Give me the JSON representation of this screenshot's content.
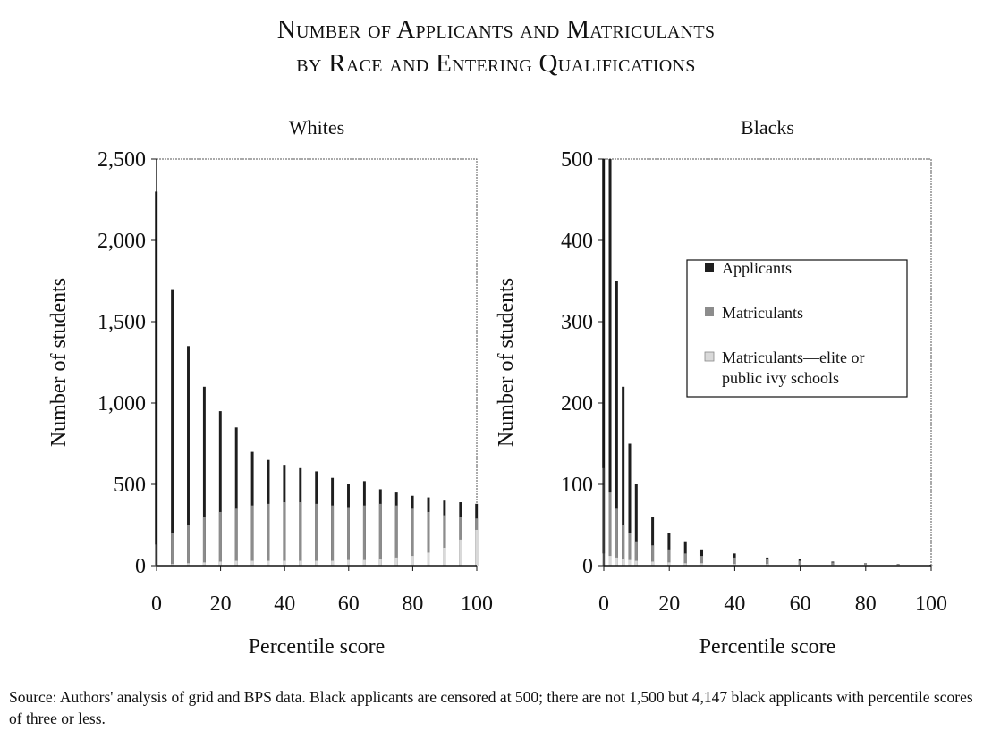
{
  "title": {
    "line1": "Number of Applicants and Matriculants",
    "line2": "by Race and Entering Qualifications"
  },
  "source": "Source: Authors' analysis of grid and BPS data. Black applicants are censored at 500; there are not 1,500 but 4,147 black applicants with percentile scores of three or less.",
  "colors": {
    "applicants": "#1e1e1e",
    "matriculants": "#8c8c8c",
    "elite": "#d9d9d9",
    "frame": "#555555"
  },
  "chart_data": [
    {
      "type": "bar",
      "title": "Whites",
      "xlabel": "Percentile score",
      "ylabel": "Number of students",
      "xlim": [
        0,
        100
      ],
      "ylim": [
        0,
        2500
      ],
      "xticks": [
        "0",
        "20",
        "40",
        "60",
        "80",
        "100"
      ],
      "yticks": [
        "0",
        "500",
        "1,000",
        "1,500",
        "2,000",
        "2,500"
      ],
      "series": [
        {
          "name": "Applicants",
          "x": [
            0,
            5,
            10,
            15,
            20,
            25,
            30,
            35,
            40,
            45,
            50,
            55,
            60,
            65,
            70,
            75,
            80,
            85,
            90,
            95,
            100
          ],
          "values": [
            2300,
            1700,
            1350,
            1100,
            950,
            850,
            700,
            650,
            620,
            600,
            580,
            540,
            500,
            520,
            470,
            450,
            430,
            420,
            400,
            390,
            380
          ]
        },
        {
          "name": "Matriculants",
          "x": [
            0,
            5,
            10,
            15,
            20,
            25,
            30,
            35,
            40,
            45,
            50,
            55,
            60,
            65,
            70,
            75,
            80,
            85,
            90,
            95,
            100
          ],
          "values": [
            130,
            200,
            250,
            300,
            330,
            350,
            370,
            380,
            390,
            390,
            380,
            370,
            360,
            370,
            380,
            370,
            350,
            330,
            310,
            300,
            290
          ]
        },
        {
          "name": "Matriculants—elite or public ivy schools",
          "x": [
            0,
            5,
            10,
            15,
            20,
            25,
            30,
            35,
            40,
            45,
            50,
            55,
            60,
            65,
            70,
            75,
            80,
            85,
            90,
            95,
            100
          ],
          "values": [
            5,
            10,
            15,
            20,
            25,
            30,
            30,
            30,
            30,
            30,
            30,
            30,
            35,
            35,
            40,
            50,
            60,
            80,
            110,
            160,
            220
          ]
        }
      ]
    },
    {
      "type": "bar",
      "title": "Blacks",
      "xlabel": "Percentile score",
      "ylabel": "Number of students",
      "xlim": [
        0,
        100
      ],
      "ylim": [
        0,
        500
      ],
      "xticks": [
        "0",
        "20",
        "40",
        "60",
        "80",
        "100"
      ],
      "yticks": [
        "0",
        "100",
        "200",
        "300",
        "400",
        "500"
      ],
      "legend": {
        "position": "right",
        "entries": [
          "Applicants",
          "Matriculants",
          "Matriculants—elite or public ivy schools"
        ]
      },
      "series": [
        {
          "name": "Applicants",
          "x": [
            0,
            2,
            4,
            6,
            8,
            10,
            15,
            20,
            25,
            30,
            40,
            50,
            60,
            70,
            80,
            90,
            100
          ],
          "values": [
            500,
            500,
            350,
            220,
            150,
            100,
            60,
            40,
            30,
            20,
            15,
            10,
            8,
            5,
            3,
            2,
            1
          ]
        },
        {
          "name": "Matriculants",
          "x": [
            0,
            2,
            4,
            6,
            8,
            10,
            15,
            20,
            25,
            30,
            40,
            50,
            60,
            70,
            80,
            90,
            100
          ],
          "values": [
            120,
            90,
            70,
            50,
            40,
            30,
            25,
            20,
            15,
            12,
            10,
            8,
            6,
            4,
            3,
            2,
            1
          ]
        },
        {
          "name": "Matriculants—elite or public ivy schools",
          "x": [
            0,
            2,
            4,
            6,
            8,
            10,
            15,
            20,
            25,
            30,
            40,
            50,
            60,
            70,
            80,
            90,
            100
          ],
          "values": [
            15,
            12,
            10,
            8,
            7,
            6,
            5,
            4,
            3,
            3,
            2,
            2,
            1,
            1,
            1,
            1,
            0
          ]
        }
      ]
    }
  ]
}
